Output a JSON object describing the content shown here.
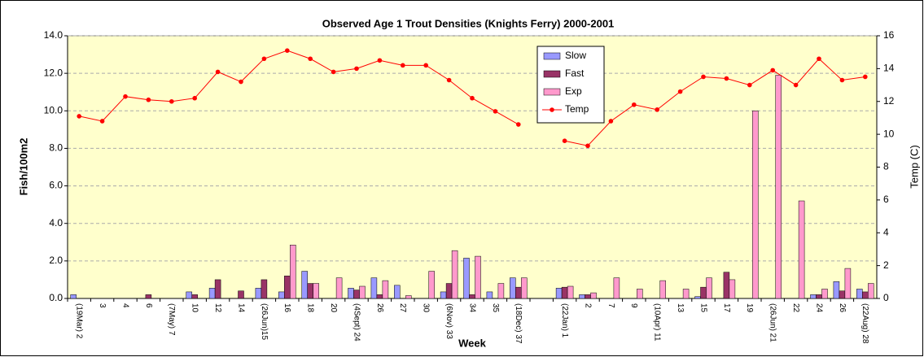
{
  "chart_data": {
    "type": "bar",
    "title": "Observed Age 1 Trout Densities (Knights Ferry) 2000-2001",
    "x_label": "Week",
    "y_label": "Fish/100m2",
    "y2_label": "Temp (C)",
    "categories": [
      "(19Mar) 2",
      "3",
      "4",
      "6",
      "(7May) 7",
      "10",
      "12",
      "14",
      "(26Jun)15",
      "16",
      "18",
      "20",
      "(4Sept) 24",
      "26",
      "27",
      "30",
      "(6Nov) 33",
      "34",
      "35",
      "(18Dec) 37",
      null,
      "(22Jan) 1",
      "2",
      "7",
      "9",
      "(10Apr) 11",
      "13",
      "15",
      "17",
      "19",
      "(26Jun) 21",
      "22",
      "24",
      "26",
      "(22Aug) 28"
    ],
    "series": [
      {
        "name": "Slow",
        "color": "#9999ff",
        "values": [
          0.2,
          0,
          0,
          0,
          0,
          0.35,
          0.55,
          0,
          0.55,
          0.35,
          1.45,
          0,
          0.55,
          1.1,
          0.7,
          0,
          0.35,
          2.15,
          0.35,
          1.1,
          null,
          0.55,
          0.2,
          0,
          0,
          0,
          0,
          0.1,
          0,
          0,
          0,
          0,
          0.2,
          0.9,
          0.5
        ]
      },
      {
        "name": "Fast",
        "color": "#993366",
        "values": [
          0,
          0,
          0,
          0.2,
          0,
          0.2,
          1.0,
          0.4,
          1.0,
          1.2,
          0.8,
          0,
          0.45,
          0.2,
          0,
          0,
          0.8,
          0.2,
          0,
          0.6,
          null,
          0.6,
          0.2,
          0,
          0,
          0,
          0,
          0.6,
          1.4,
          0,
          0,
          0,
          0.2,
          0.4,
          0.35
        ]
      },
      {
        "name": "Exp",
        "color": "#ff99cc",
        "values": [
          0,
          0,
          0,
          0,
          0,
          0,
          0,
          0,
          0,
          2.85,
          0.8,
          1.1,
          0.65,
          0.95,
          0.15,
          1.45,
          2.55,
          2.25,
          0.8,
          1.1,
          null,
          0.65,
          0.3,
          1.1,
          0.5,
          0.95,
          0.5,
          1.1,
          1.0,
          10.0,
          11.9,
          5.2,
          0.5,
          1.6,
          0.8
        ]
      },
      {
        "name": "Temp",
        "color": "#ff0000",
        "type": "line",
        "axis": "y2",
        "values": [
          11.1,
          10.8,
          12.3,
          12.1,
          12.0,
          12.2,
          13.8,
          13.2,
          14.6,
          15.1,
          14.6,
          13.8,
          14.0,
          14.5,
          14.2,
          14.2,
          13.3,
          12.2,
          11.4,
          10.6,
          null,
          9.6,
          9.3,
          10.8,
          11.8,
          11.5,
          12.6,
          13.5,
          13.4,
          13.0,
          13.9,
          13.0,
          14.6,
          13.3,
          13.5
        ]
      }
    ],
    "ylim": [
      0,
      14
    ],
    "yticks": [
      {
        "value": 0,
        "label": "0.0"
      },
      {
        "value": 2,
        "label": "2.0"
      },
      {
        "value": 4,
        "label": "4.0"
      },
      {
        "value": 6,
        "label": "6.0"
      },
      {
        "value": 8,
        "label": "8.0"
      },
      {
        "value": 10,
        "label": "10.0"
      },
      {
        "value": 12,
        "label": "12.0"
      },
      {
        "value": 14,
        "label": "14.0"
      }
    ],
    "y2lim": [
      0,
      16
    ],
    "y2ticks": [
      0,
      2,
      4,
      6,
      8,
      10,
      12,
      14,
      16
    ],
    "grid": true,
    "legend": "top-center"
  }
}
